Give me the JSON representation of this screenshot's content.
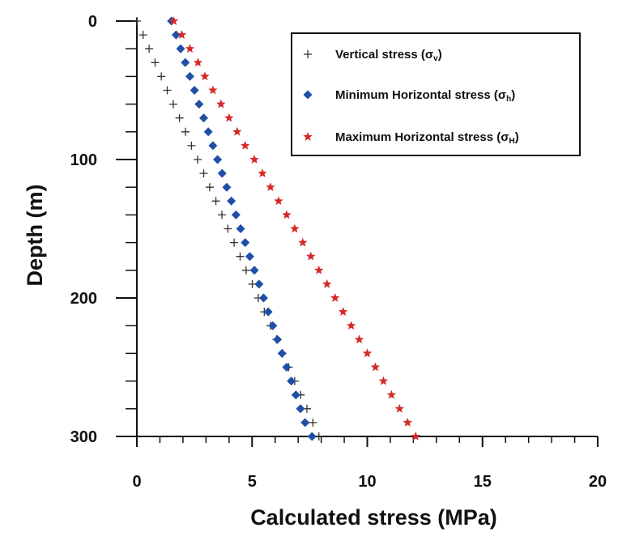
{
  "chart_data": {
    "type": "scatter",
    "title": "",
    "xlabel": "Calculated stress (MPa)",
    "ylabel": "Depth (m)",
    "xlim": [
      0,
      20
    ],
    "ylim": [
      300,
      0
    ],
    "xticks": [
      "0",
      "5",
      "10",
      "15",
      "20"
    ],
    "yticks": [
      "0",
      "100",
      "200",
      "300"
    ],
    "legend_position": "top-right",
    "colors": {
      "vertical": "#333333",
      "minimum": "#1f4fa6",
      "maximum": "#d42a2a"
    },
    "series": [
      {
        "name": "Vertical stress (σv)",
        "legend_main": "Vertical stress (σ",
        "legend_sub": "v",
        "legend_close": ")",
        "marker": "plus",
        "depth": [
          0,
          10,
          20,
          30,
          40,
          50,
          60,
          70,
          80,
          90,
          100,
          110,
          120,
          130,
          140,
          150,
          160,
          170,
          180,
          190,
          200,
          210,
          220,
          230,
          240,
          250,
          260,
          270,
          280,
          290,
          300
        ],
        "stress": [
          0.0,
          0.27,
          0.53,
          0.79,
          1.06,
          1.32,
          1.58,
          1.85,
          2.11,
          2.37,
          2.64,
          2.9,
          3.16,
          3.43,
          3.69,
          3.95,
          4.22,
          4.48,
          4.74,
          5.01,
          5.27,
          5.53,
          5.8,
          6.06,
          6.32,
          6.59,
          6.85,
          7.11,
          7.38,
          7.64,
          7.9
        ]
      },
      {
        "name": "Minimum Horizontal stress (σh)",
        "legend_main": "Minimum Horizontal stress (σ",
        "legend_sub": "h",
        "legend_close": ")",
        "marker": "diamond",
        "depth": [
          0,
          10,
          20,
          30,
          40,
          50,
          60,
          70,
          80,
          90,
          100,
          110,
          120,
          130,
          140,
          150,
          160,
          170,
          180,
          190,
          200,
          210,
          220,
          230,
          240,
          250,
          260,
          270,
          280,
          290,
          300
        ],
        "stress": [
          1.5,
          1.7,
          1.9,
          2.1,
          2.3,
          2.5,
          2.7,
          2.9,
          3.1,
          3.3,
          3.5,
          3.7,
          3.9,
          4.1,
          4.3,
          4.5,
          4.7,
          4.9,
          5.1,
          5.3,
          5.5,
          5.7,
          5.9,
          6.1,
          6.3,
          6.5,
          6.7,
          6.9,
          7.1,
          7.3,
          7.6
        ]
      },
      {
        "name": "Maximum Horizontal stress (σH)",
        "legend_main": "Maximum Horizontal stress (σ",
        "legend_sub": "H",
        "legend_close": ")",
        "marker": "star",
        "depth": [
          0,
          10,
          20,
          30,
          40,
          50,
          60,
          70,
          80,
          90,
          100,
          110,
          120,
          130,
          140,
          150,
          160,
          170,
          180,
          190,
          200,
          210,
          220,
          230,
          240,
          250,
          260,
          270,
          280,
          290,
          300
        ],
        "stress": [
          1.6,
          1.95,
          2.3,
          2.65,
          2.95,
          3.3,
          3.65,
          4.0,
          4.35,
          4.7,
          5.1,
          5.45,
          5.8,
          6.15,
          6.5,
          6.85,
          7.2,
          7.55,
          7.9,
          8.25,
          8.6,
          8.95,
          9.3,
          9.65,
          10.0,
          10.35,
          10.7,
          11.05,
          11.4,
          11.75,
          12.1
        ]
      }
    ]
  }
}
